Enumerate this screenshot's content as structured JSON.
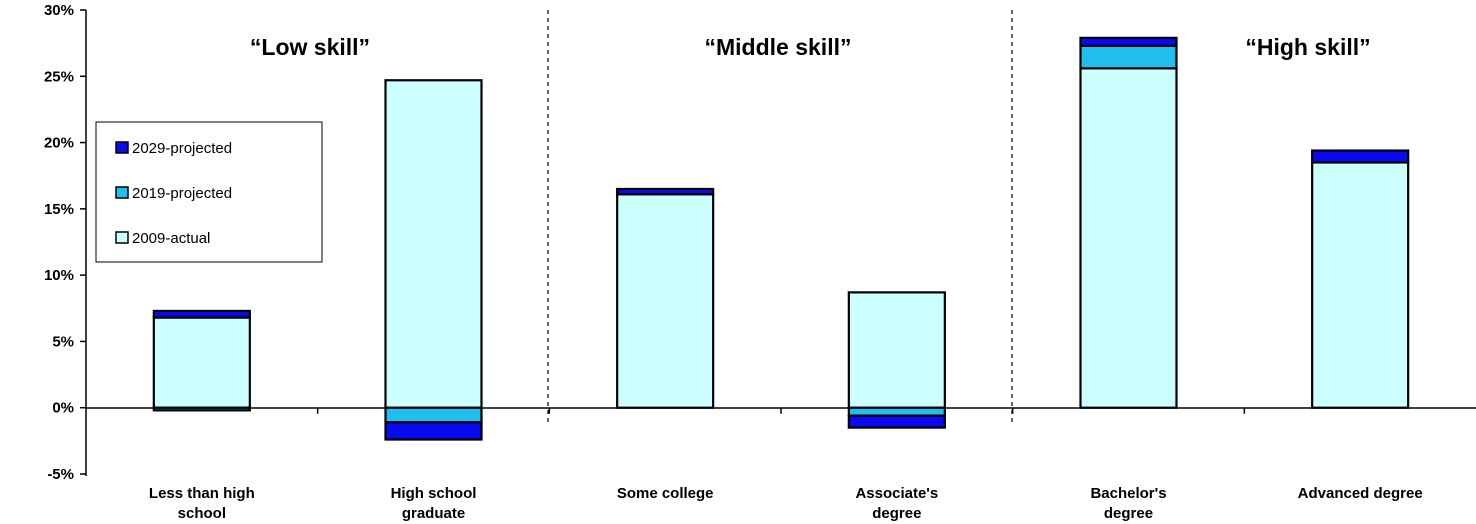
{
  "chart_data": {
    "type": "bar",
    "stacked": true,
    "title": "",
    "xlabel": "",
    "ylabel": "",
    "ylim": [
      -5,
      30
    ],
    "yticks": [
      -5,
      0,
      5,
      10,
      15,
      20,
      25,
      30
    ],
    "ytick_labels": [
      "-5%",
      "0%",
      "5%",
      "10%",
      "15%",
      "20%",
      "25%",
      "30%"
    ],
    "grid": false,
    "legend_position": "left",
    "categories": [
      [
        "Less than high",
        "school"
      ],
      [
        "High school",
        "graduate"
      ],
      [
        "Some college"
      ],
      [
        "Associate's",
        "degree"
      ],
      [
        "Bachelor's",
        "degree"
      ],
      [
        "Advanced degree"
      ]
    ],
    "series": [
      {
        "name": "2009-actual",
        "color": "#ccffff",
        "values": [
          6.8,
          24.7,
          16.1,
          8.7,
          25.6,
          18.5
        ]
      },
      {
        "name": "2019-projected",
        "color": "#1fbff0",
        "values": [
          -0.2,
          -1.1,
          0.0,
          -0.6,
          1.7,
          0.0
        ]
      },
      {
        "name": "2029-projected",
        "color": "#0a0af0",
        "values": [
          0.5,
          -1.3,
          0.4,
          -0.9,
          0.6,
          0.9
        ]
      }
    ],
    "group_labels": [
      "“Low skill”",
      "“Middle skill”",
      "“High skill”"
    ],
    "legend_order": [
      "2029-projected",
      "2019-projected",
      "2009-actual"
    ]
  }
}
